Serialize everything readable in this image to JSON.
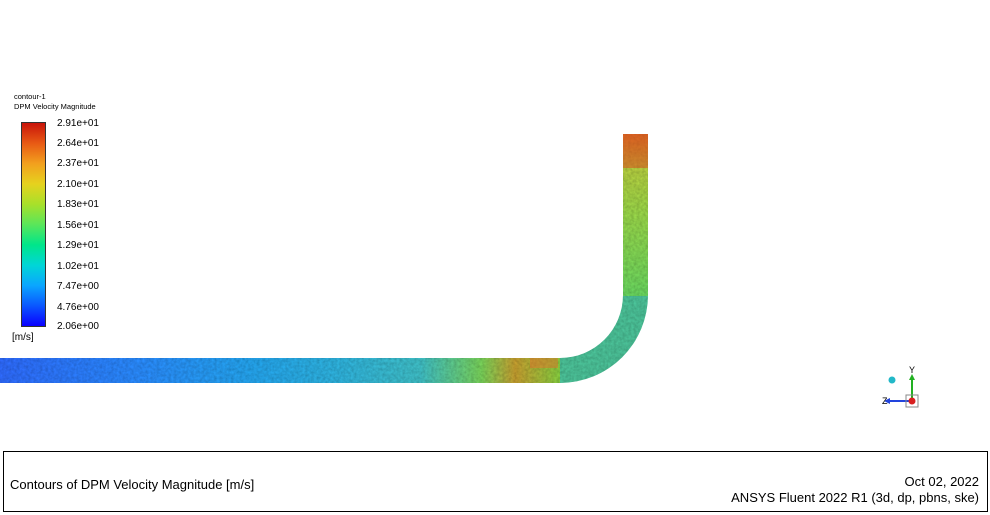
{
  "legend": {
    "title": "contour-1",
    "variable": "DPM Velocity Magnitude",
    "units": "[m/s]",
    "ticks": [
      "2.91e+01",
      "2.64e+01",
      "2.37e+01",
      "2.10e+01",
      "1.83e+01",
      "1.56e+01",
      "1.29e+01",
      "1.02e+01",
      "7.47e+00",
      "4.76e+00",
      "2.06e+00"
    ]
  },
  "colormap": [
    "#0a00ff",
    "#0a57ff",
    "#0aa6ff",
    "#00d6d6",
    "#00e68a",
    "#5ae65a",
    "#a8e02a",
    "#e6d21e",
    "#f2a01e",
    "#e85a14",
    "#c8140a"
  ],
  "axes_triad": {
    "y_label": "Y",
    "z_label": "Z"
  },
  "caption": {
    "description": "Contours of DPM Velocity Magnitude [m/s]",
    "date": "Oct 02, 2022",
    "software": "ANSYS Fluent 2022 R1 (3d, dp, pbns, ske)"
  }
}
